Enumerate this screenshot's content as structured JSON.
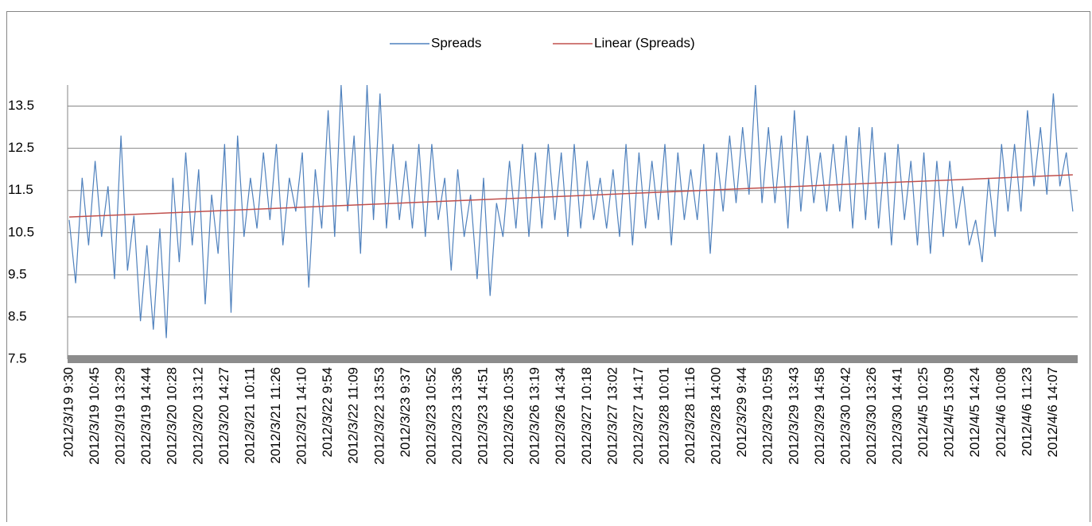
{
  "chart_data": {
    "type": "line",
    "categories": [
      "2012/3/19 9:30",
      null,
      null,
      null,
      "2012/3/19 10:45",
      null,
      null,
      null,
      "2012/3/19 13:29",
      null,
      null,
      null,
      "2012/3/19 14:44",
      null,
      null,
      null,
      "2012/3/20 10:28",
      null,
      null,
      null,
      "2012/3/20 13:12",
      null,
      null,
      null,
      "2012/3/20 14:27",
      null,
      null,
      null,
      "2012/3/21 10:11",
      null,
      null,
      null,
      "2012/3/21 11:26",
      null,
      null,
      null,
      "2012/3/21 14:10",
      null,
      null,
      null,
      "2012/3/22 9:54",
      null,
      null,
      null,
      "2012/3/22 11:09",
      null,
      null,
      null,
      "2012/3/22 13:53",
      null,
      null,
      null,
      "2012/3/23 9:37",
      null,
      null,
      null,
      "2012/3/23 10:52",
      null,
      null,
      null,
      "2012/3/23 13:36",
      null,
      null,
      null,
      "2012/3/23 14:51",
      null,
      null,
      null,
      "2012/3/26 10:35",
      null,
      null,
      null,
      "2012/3/26 13:19",
      null,
      null,
      null,
      "2012/3/26 14:34",
      null,
      null,
      null,
      "2012/3/27 10:18",
      null,
      null,
      null,
      "2012/3/27 13:02",
      null,
      null,
      null,
      "2012/3/27 14:17",
      null,
      null,
      null,
      "2012/3/28 10:01",
      null,
      null,
      null,
      "2012/3/28 11:16",
      null,
      null,
      null,
      "2012/3/28 14:00",
      null,
      null,
      null,
      "2012/3/29 9:44",
      null,
      null,
      null,
      "2012/3/29 10:59",
      null,
      null,
      null,
      "2012/3/29 13:43",
      null,
      null,
      null,
      "2012/3/29 14:58",
      null,
      null,
      null,
      "2012/3/30 10:42",
      null,
      null,
      null,
      "2012/3/30 13:26",
      null,
      null,
      null,
      "2012/3/30 14:41",
      null,
      null,
      null,
      "2012/4/5 10:25",
      null,
      null,
      null,
      "2012/4/5 13:09",
      null,
      null,
      null,
      "2012/4/5 14:24",
      null,
      null,
      null,
      "2012/4/6 10:08",
      null,
      null,
      null,
      "2012/4/6 11:23",
      null,
      null,
      null,
      "2012/4/6 14:07",
      null,
      null,
      null
    ],
    "series": [
      {
        "name": "Spreads",
        "color": "#4f81bd",
        "values": [
          10.8,
          9.3,
          11.8,
          10.2,
          12.2,
          10.4,
          11.6,
          9.4,
          12.8,
          9.6,
          10.9,
          8.4,
          10.2,
          8.2,
          10.6,
          8.0,
          11.8,
          9.8,
          12.4,
          10.2,
          12.0,
          8.8,
          11.4,
          10.0,
          12.6,
          8.6,
          12.8,
          10.4,
          11.8,
          10.6,
          12.4,
          10.8,
          12.6,
          10.2,
          11.8,
          11.0,
          12.4,
          9.2,
          12.0,
          10.6,
          13.4,
          10.4,
          14.0,
          11.0,
          12.8,
          10.0,
          14.0,
          10.8,
          13.8,
          10.6,
          12.6,
          10.8,
          12.2,
          10.6,
          12.6,
          10.4,
          12.6,
          10.8,
          11.8,
          9.6,
          12.0,
          10.4,
          11.4,
          9.4,
          11.8,
          9.0,
          11.2,
          10.4,
          12.2,
          10.6,
          12.6,
          10.4,
          12.4,
          10.6,
          12.6,
          10.8,
          12.4,
          10.4,
          12.6,
          10.6,
          12.2,
          10.8,
          11.8,
          10.6,
          12.0,
          10.4,
          12.6,
          10.2,
          12.4,
          10.6,
          12.2,
          10.8,
          12.6,
          10.2,
          12.4,
          10.8,
          12.0,
          10.8,
          12.6,
          10.0,
          12.4,
          11.0,
          12.8,
          11.2,
          13.0,
          11.4,
          14.0,
          11.2,
          13.0,
          11.2,
          12.8,
          10.6,
          13.4,
          11.0,
          12.8,
          11.2,
          12.4,
          11.0,
          12.6,
          11.0,
          12.8,
          10.6,
          13.0,
          10.8,
          13.0,
          10.6,
          12.4,
          10.2,
          12.6,
          10.8,
          12.2,
          10.2,
          12.4,
          10.0,
          12.2,
          10.4,
          12.2,
          10.6,
          11.6,
          10.2,
          10.8,
          9.8,
          11.8,
          10.4,
          12.6,
          11.0,
          12.6,
          11.0,
          13.4,
          11.6,
          13.0,
          11.4,
          13.8,
          11.6,
          12.4,
          11.0
        ]
      }
    ],
    "trendline": {
      "name": "Linear (Spreads)",
      "color": "#c0504d",
      "values": [
        10.87,
        11.87
      ]
    },
    "ylim": [
      7.5,
      14
    ],
    "yticks": [
      7.5,
      8.5,
      9.5,
      10.5,
      11.5,
      12.5,
      13.5
    ],
    "grid": true
  }
}
